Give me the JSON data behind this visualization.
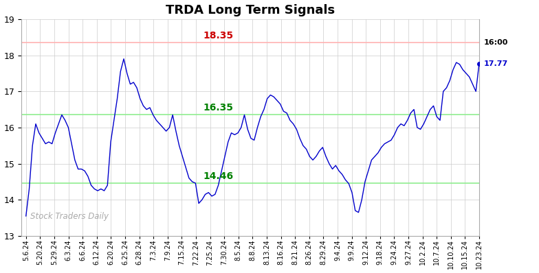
{
  "title": "TRDA Long Term Signals",
  "x_labels": [
    "5.6.24",
    "5.20.24",
    "5.29.24",
    "6.3.24",
    "6.6.24",
    "6.12.24",
    "6.20.24",
    "6.25.24",
    "6.28.24",
    "7.3.24",
    "7.9.24",
    "7.15.24",
    "7.22.24",
    "7.25.24",
    "7.30.24",
    "8.5.24",
    "8.8.24",
    "8.13.24",
    "8.16.24",
    "8.21.24",
    "8.26.24",
    "8.29.24",
    "9.4.24",
    "9.9.24",
    "9.12.24",
    "9.18.24",
    "9.24.24",
    "9.27.24",
    "10.2.24",
    "10.7.24",
    "10.10.24",
    "10.15.24",
    "10.23.24"
  ],
  "y_data": [
    13.55,
    14.3,
    15.5,
    16.1,
    15.85,
    15.7,
    15.55,
    15.6,
    15.55,
    15.85,
    16.1,
    16.35,
    16.2,
    16.0,
    15.55,
    15.1,
    14.85,
    14.85,
    14.8,
    14.65,
    14.4,
    14.3,
    14.25,
    14.3,
    14.25,
    14.4,
    15.6,
    16.2,
    16.8,
    17.55,
    17.9,
    17.5,
    17.2,
    17.25,
    17.1,
    16.8,
    16.6,
    16.5,
    16.55,
    16.35,
    16.2,
    16.1,
    16.0,
    15.9,
    16.0,
    16.35,
    15.9,
    15.5,
    15.2,
    14.9,
    14.6,
    14.5,
    14.46,
    13.9,
    14.0,
    14.15,
    14.2,
    14.1,
    14.15,
    14.4,
    14.8,
    15.2,
    15.6,
    15.85,
    15.8,
    15.85,
    16.0,
    16.35,
    15.95,
    15.7,
    15.65,
    16.0,
    16.3,
    16.5,
    16.8,
    16.9,
    16.85,
    16.75,
    16.65,
    16.45,
    16.4,
    16.2,
    16.1,
    15.95,
    15.7,
    15.5,
    15.4,
    15.2,
    15.1,
    15.2,
    15.35,
    15.45,
    15.2,
    15.0,
    14.85,
    14.95,
    14.8,
    14.7,
    14.55,
    14.45,
    14.2,
    13.7,
    13.65,
    14.0,
    14.5,
    14.8,
    15.1,
    15.2,
    15.3,
    15.45,
    15.55,
    15.6,
    15.65,
    15.8,
    16.0,
    16.1,
    16.05,
    16.2,
    16.4,
    16.5,
    16.0,
    15.95,
    16.1,
    16.3,
    16.5,
    16.6,
    16.3,
    16.2,
    17.0,
    17.1,
    17.3,
    17.6,
    17.8,
    17.75,
    17.6,
    17.5,
    17.4,
    17.2,
    17.0,
    17.77
  ],
  "hline_red": 18.35,
  "hline_green_upper": 16.35,
  "hline_green_lower": 14.46,
  "hline_red_color": "#ffb3b3",
  "hline_green_color": "#90ee90",
  "line_color": "#0000cc",
  "annot_red_text": "18.35",
  "annot_red_color": "#cc0000",
  "annot_green_upper_text": "16.35",
  "annot_green_lower_text": "14.46",
  "annot_green_color": "#008000",
  "last_time": "16:00",
  "last_price": "17.77",
  "last_color": "#0000cc",
  "watermark": "Stock Traders Daily",
  "ylim": [
    13.0,
    19.0
  ],
  "yticks": [
    13,
    14,
    15,
    16,
    17,
    18,
    19
  ],
  "background_color": "#ffffff",
  "grid_color": "#cccccc",
  "title_fontsize": 13
}
